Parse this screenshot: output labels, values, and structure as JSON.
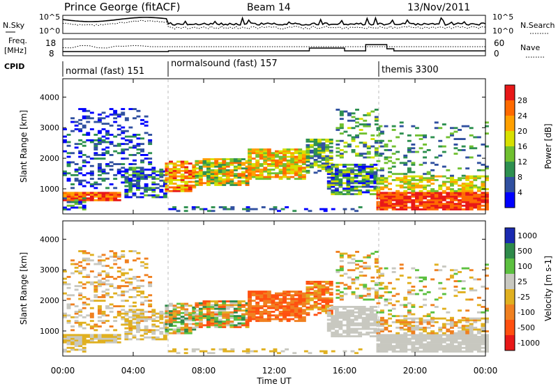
{
  "header": {
    "station": "Prince George (fitACF)",
    "beam": "Beam 14",
    "date": "13/Nov/2011"
  },
  "noise_panel": {
    "left_label": "N.Sky",
    "right_label": "N.Search",
    "ytick_top": "10^5",
    "ytick_bottom": "10^0"
  },
  "freq_panel": {
    "left_label_1": "Freq.",
    "left_label_2": "[MHz]",
    "right_label": "Nave",
    "left_ticks": [
      "18",
      "8"
    ],
    "right_ticks": [
      "60",
      "0"
    ]
  },
  "cpid": {
    "label": "CPID",
    "segments": [
      {
        "start_hour": 0,
        "text": "normal (fast) 151"
      },
      {
        "start_hour": 6,
        "text": "normalsound (fast) 157"
      },
      {
        "start_hour": 18,
        "text": "themis 3300"
      }
    ]
  },
  "chart_data": [
    {
      "type": "heatmap",
      "ylabel": "Slant Range [km]",
      "ylim": [
        180,
        4600
      ],
      "yticks": [
        1000,
        2000,
        3000,
        4000
      ],
      "x_ticks": [
        "00:00",
        "04:00",
        "08:00",
        "12:00",
        "16:00",
        "20:00",
        "00:00"
      ],
      "colorbar": {
        "label": "Power [dB]",
        "ticks": [
          "28",
          "24",
          "20",
          "16",
          "12",
          "8",
          "4"
        ],
        "colors": [
          "#e81818",
          "#ff6a00",
          "#ffa000",
          "#d8e000",
          "#70c030",
          "#2e9050",
          "#3050a0",
          "#0000ff"
        ]
      }
    },
    {
      "type": "heatmap",
      "ylabel": "Slant Range [km]",
      "ylim": [
        180,
        4600
      ],
      "yticks": [
        1000,
        2000,
        3000,
        4000
      ],
      "x_ticks": [
        "00:00",
        "04:00",
        "08:00",
        "12:00",
        "16:00",
        "20:00",
        "00:00"
      ],
      "xlabel": "Time UT",
      "colorbar": {
        "label": "Velocity [m s-1]",
        "ticks": [
          "1000",
          "500",
          "100",
          "25",
          "-25",
          "-100",
          "-500",
          "-1000"
        ],
        "colors": [
          "#1a2ab0",
          "#2e8a4a",
          "#5cc040",
          "#c8c8c0",
          "#e0b020",
          "#f08020",
          "#ff5010",
          "#e81818"
        ]
      }
    }
  ]
}
